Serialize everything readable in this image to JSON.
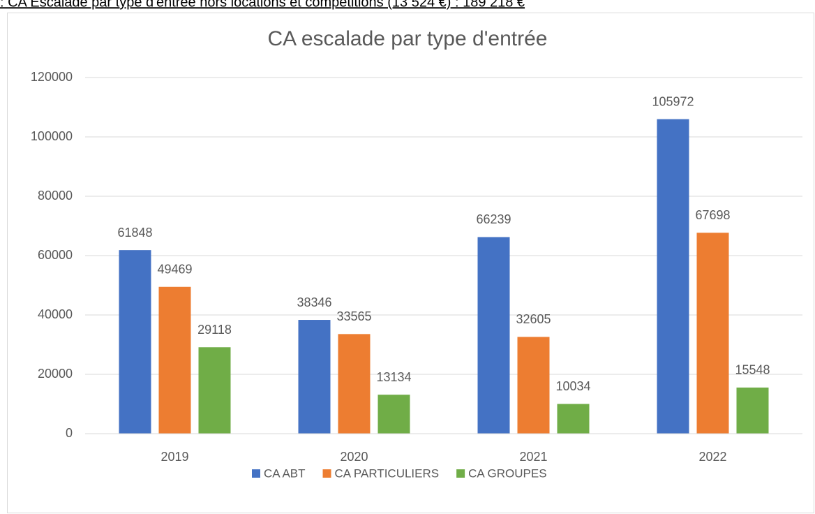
{
  "caption": ": CA Escalade par type d'entrée hors locations et compétitions (13 524 €) : 189 218 €",
  "chart_data": {
    "type": "bar",
    "title": "CA escalade par type d'entrée",
    "categories": [
      "2019",
      "2020",
      "2021",
      "2022"
    ],
    "series": [
      {
        "name": "CA ABT",
        "color": "#4472c4",
        "values": [
          61848,
          38346,
          66239,
          105972
        ]
      },
      {
        "name": "CA PARTICULIERS",
        "color": "#ed7d31",
        "values": [
          49469,
          33565,
          32605,
          67698
        ]
      },
      {
        "name": "CA GROUPES",
        "color": "#70ad47",
        "values": [
          29118,
          13134,
          10034,
          15548
        ]
      }
    ],
    "ylim": [
      0,
      120000
    ],
    "yticks": [
      0,
      20000,
      40000,
      60000,
      80000,
      100000,
      120000
    ],
    "grid": true,
    "legend": "bottom"
  }
}
